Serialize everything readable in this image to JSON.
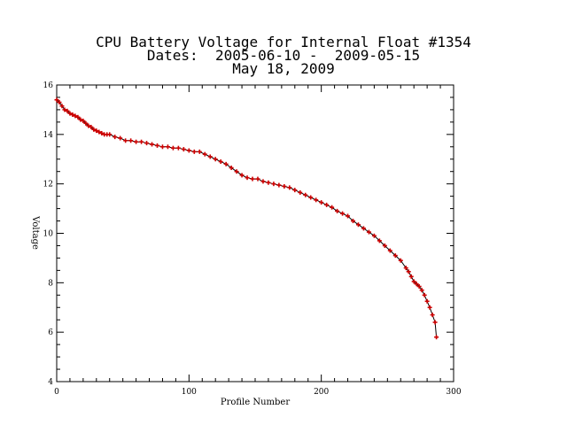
{
  "title_lines": [
    "CPU Battery Voltage for Internal Float #1354",
    "Dates:  2005-06-10 -  2009-05-15",
    "May 18, 2009"
  ],
  "colors": {
    "line": "#000000",
    "marker": "#cc0000",
    "axes": "#000000"
  },
  "chart_data": {
    "type": "line",
    "title": "CPU Battery Voltage for Internal Float #1354",
    "subtitle": "Dates:  2005-06-10 -  2009-05-15  May 18, 2009",
    "xlabel": "Profile Number",
    "ylabel": "Voltage",
    "xlim": [
      0,
      300
    ],
    "ylim": [
      4,
      16
    ],
    "xticks": [
      0,
      100,
      200,
      300
    ],
    "yticks": [
      4,
      6,
      8,
      10,
      12,
      14,
      16
    ],
    "grid": false,
    "marker": "plus",
    "series": [
      {
        "x": [
          0,
          2,
          4,
          6,
          8,
          10,
          12,
          14,
          16,
          18,
          20,
          22,
          24,
          26,
          28,
          30,
          32,
          34,
          36,
          38,
          40,
          44,
          48,
          52,
          56,
          60,
          64,
          68,
          72,
          76,
          80,
          84,
          88,
          92,
          96,
          100,
          104,
          108,
          112,
          116,
          120,
          124,
          128,
          132,
          136,
          140,
          144,
          148,
          152,
          156,
          160,
          164,
          168,
          172,
          176,
          180,
          184,
          188,
          192,
          196,
          200,
          204,
          208,
          212,
          216,
          220,
          224,
          228,
          232,
          236,
          240,
          244,
          248,
          252,
          256,
          260,
          264,
          266,
          268,
          270,
          272,
          274,
          276,
          278,
          280,
          282,
          284,
          286,
          287
        ],
        "y": [
          15.4,
          15.3,
          15.15,
          15.0,
          14.95,
          14.85,
          14.8,
          14.75,
          14.7,
          14.6,
          14.55,
          14.45,
          14.35,
          14.3,
          14.2,
          14.15,
          14.1,
          14.05,
          14.0,
          14.0,
          14.0,
          13.9,
          13.85,
          13.75,
          13.75,
          13.7,
          13.7,
          13.65,
          13.6,
          13.55,
          13.5,
          13.5,
          13.45,
          13.45,
          13.4,
          13.35,
          13.3,
          13.3,
          13.2,
          13.1,
          13.0,
          12.9,
          12.8,
          12.65,
          12.5,
          12.35,
          12.25,
          12.2,
          12.2,
          12.1,
          12.05,
          12.0,
          11.95,
          11.9,
          11.85,
          11.75,
          11.65,
          11.55,
          11.45,
          11.35,
          11.25,
          11.15,
          11.05,
          10.9,
          10.8,
          10.7,
          10.5,
          10.35,
          10.2,
          10.05,
          9.9,
          9.7,
          9.5,
          9.3,
          9.1,
          8.9,
          8.6,
          8.45,
          8.25,
          8.05,
          7.95,
          7.85,
          7.7,
          7.5,
          7.25,
          7.0,
          6.7,
          6.4,
          5.8
        ]
      }
    ]
  }
}
